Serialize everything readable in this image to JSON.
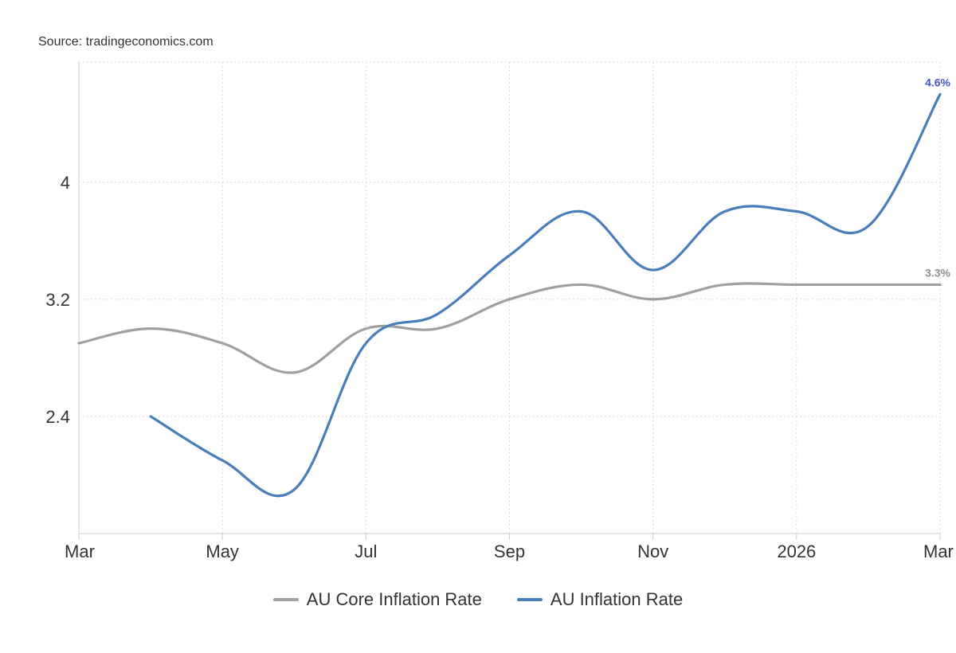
{
  "source": "Source: tradingeconomics.com",
  "chart_data": {
    "type": "line",
    "title": "",
    "xlabel": "",
    "ylabel": "",
    "x_tick_labels": [
      "Mar",
      "May",
      "Jul",
      "Sep",
      "Nov",
      "2026",
      "Mar"
    ],
    "x": [
      "2025-03",
      "2025-04",
      "2025-05",
      "2025-06",
      "2025-07",
      "2025-08",
      "2025-09",
      "2025-10",
      "2025-11",
      "2025-12",
      "2026-01",
      "2026-02",
      "2026-03"
    ],
    "y_tick_labels": [
      "2.4",
      "3.2",
      "4"
    ],
    "ylim": [
      1.6,
      4.82
    ],
    "grid": true,
    "legend_position": "bottom",
    "series": [
      {
        "name": "AU Core Inflation Rate",
        "color": "#a0a0a0",
        "values": [
          2.9,
          3.0,
          2.9,
          2.7,
          3.0,
          3.0,
          3.2,
          3.3,
          3.2,
          3.3,
          3.3,
          3.3,
          3.3
        ],
        "end_label": "3.3%"
      },
      {
        "name": "AU Inflation Rate",
        "color": "#4a7ebb",
        "values": [
          null,
          2.4,
          2.1,
          1.9,
          2.9,
          3.1,
          3.5,
          3.8,
          3.4,
          3.8,
          3.8,
          3.7,
          4.6
        ],
        "end_label": "4.6%"
      }
    ]
  }
}
